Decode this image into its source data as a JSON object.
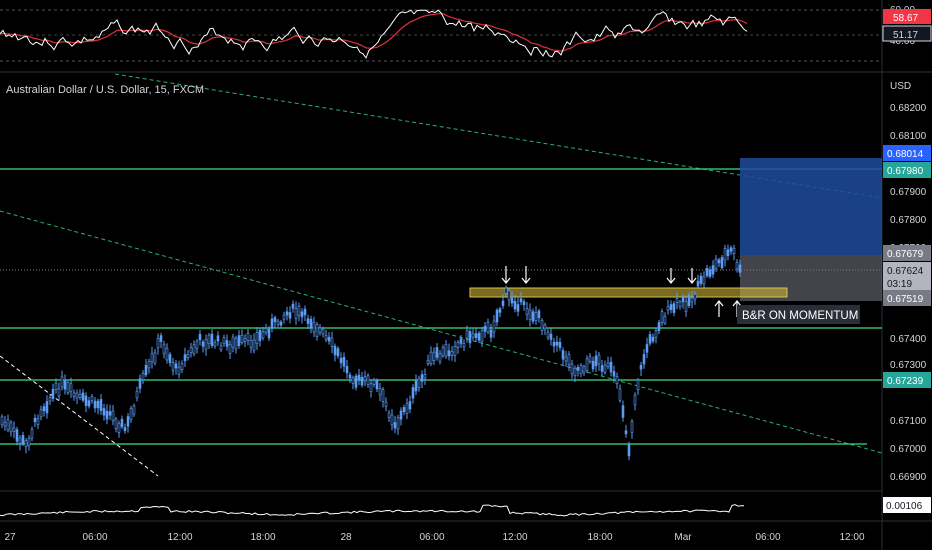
{
  "symbol_title": "Australian Dollar / U.S. Dollar, 15, FXCM",
  "currency": "USD",
  "annotation": "B&R ON MOMENTUM",
  "rsi_panel": {
    "labels": [
      "60.00",
      "40.00"
    ],
    "tags": [
      {
        "text": "58.67",
        "color": "#f23645"
      },
      {
        "text": "51.17",
        "color": "#d1d4dc"
      }
    ]
  },
  "price_axis": {
    "ticks": [
      "0.68200",
      "0.68100",
      "0.67900",
      "0.67800",
      "0.67700",
      "0.67400",
      "0.67300",
      "0.67100",
      "0.67000",
      "0.66900"
    ],
    "tags": [
      {
        "text": "0.68014",
        "color": "#2962ff"
      },
      {
        "text": "0.67980",
        "color": "#26a69a"
      },
      {
        "text": "0.67679",
        "color": "#787b86"
      },
      {
        "text": "0.67624",
        "color": "#b2b5be"
      },
      {
        "text": "03:19",
        "color": "#b2b5be"
      },
      {
        "text": "0.67519",
        "color": "#787b86"
      },
      {
        "text": "0.67239",
        "color": "#26a69a"
      }
    ]
  },
  "lower_panel": {
    "value": "0.00106"
  },
  "time_axis": [
    "27",
    "06:00",
    "12:00",
    "18:00",
    "28",
    "06:00",
    "12:00",
    "18:00",
    "Mar",
    "06:00",
    "12:00"
  ],
  "colors": {
    "background": "#000000",
    "candle": "#5b9cf6",
    "support_lines": "#3ddc84",
    "zone": "#c9b33a",
    "long_target": "#1e4b9c",
    "long_stop": "#787b86",
    "rsi_line": "#ffffff",
    "rsi_ma": "#e0303c"
  }
}
